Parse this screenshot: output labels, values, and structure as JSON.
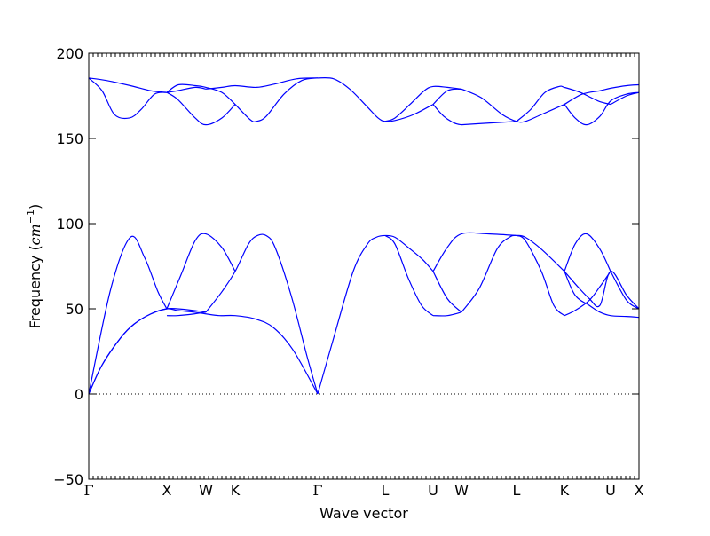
{
  "chart_data": {
    "type": "line",
    "xlabel": "Wave vector",
    "ylabel_prefix": "Frequency (",
    "ylabel_unit_base": "cm",
    "ylabel_unit_exp": "−1",
    "ylabel_suffix": ")",
    "ylim": [
      -50,
      200
    ],
    "yticks": [
      -50,
      0,
      50,
      100,
      150,
      200
    ],
    "ytick_labels": [
      "−50",
      "0",
      "50",
      "100",
      "150",
      "200"
    ],
    "x_range": [
      0,
      1
    ],
    "grid": false,
    "line_color": "#0000ff",
    "zero_line": {
      "y": 0,
      "style": "dotted",
      "color": "#000000"
    },
    "high_symmetry_points": [
      {
        "label": "Γ",
        "x": 0.0
      },
      {
        "label": "X",
        "x": 0.1419
      },
      {
        "label": "W",
        "x": 0.2129
      },
      {
        "label": "K",
        "x": 0.2661
      },
      {
        "label": "Γ",
        "x": 0.4161
      },
      {
        "label": "L",
        "x": 0.5387
      },
      {
        "label": "U",
        "x": 0.6258
      },
      {
        "label": "W",
        "x": 0.6774
      },
      {
        "label": "L",
        "x": 0.7774
      },
      {
        "label": "K",
        "x": 0.8645
      },
      {
        "label": "U",
        "x": 0.9484
      },
      {
        "label": "X",
        "x": 1.0
      }
    ],
    "series": [
      {
        "x": [
          0,
          0.0242,
          0.0581,
          0.0823,
          0.1129,
          0.1419,
          0.1613,
          0.1919,
          0.2129,
          0.2371,
          0.2661,
          0.3032,
          0.3355,
          0.371,
          0.4161
        ],
        "values": [
          0,
          17,
          33,
          41,
          47,
          50,
          49,
          48,
          47,
          46,
          46,
          44,
          39,
          26,
          0
        ]
      },
      {
        "x": [
          0,
          0.0242,
          0.0581,
          0.0823,
          0.1129,
          0.1419,
          0.1613,
          0.1919,
          0.2129
        ],
        "values": [
          0,
          17,
          33,
          41,
          47,
          50,
          50,
          49,
          48
        ]
      },
      {
        "x": [
          0.1419,
          0.1613,
          0.1919,
          0.2129
        ],
        "values": [
          46,
          46,
          47,
          48
        ]
      },
      {
        "x": [
          0,
          0.0403,
          0.0758,
          0.1016,
          0.1258,
          0.1419
        ],
        "values": [
          0,
          62,
          92,
          80,
          60,
          50
        ]
      },
      {
        "x": [
          0.1419,
          0.1677,
          0.1935,
          0.2129,
          0.2419,
          0.2661
        ],
        "values": [
          50,
          70,
          90,
          94,
          86,
          72
        ]
      },
      {
        "x": [
          0.2129,
          0.2419,
          0.2661,
          0.2903,
          0.3065,
          0.3226,
          0.3387,
          0.3677,
          0.3968,
          0.4161
        ],
        "values": [
          48,
          60,
          72,
          88,
          93,
          93,
          86,
          58,
          22,
          0
        ]
      },
      {
        "x": [
          0.4161,
          0.4452,
          0.4806,
          0.5065,
          0.5226,
          0.5387,
          0.5565,
          0.5806,
          0.6065,
          0.6258
        ],
        "values": [
          0,
          33,
          72,
          88,
          92,
          93,
          92,
          86,
          79,
          72
        ]
      },
      {
        "x": [
          0.5387,
          0.5565,
          0.5806,
          0.6048,
          0.6258
        ],
        "values": [
          93,
          88,
          68,
          52,
          46
        ]
      },
      {
        "x": [
          0.6258,
          0.6516,
          0.6774
        ],
        "values": [
          46,
          46,
          48
        ]
      },
      {
        "x": [
          0.6258,
          0.6516,
          0.6774
        ],
        "values": [
          72,
          56,
          48
        ]
      },
      {
        "x": [
          0.6258,
          0.6516,
          0.6774,
          0.7258,
          0.7774
        ],
        "values": [
          72,
          86,
          94,
          94,
          93
        ]
      },
      {
        "x": [
          0.6774,
          0.7097,
          0.7419,
          0.7645,
          0.7774,
          0.7935,
          0.8226,
          0.8645
        ],
        "values": [
          48,
          62,
          85,
          92,
          93,
          92,
          85,
          72
        ]
      },
      {
        "x": [
          0.7774,
          0.7935,
          0.8226,
          0.8452,
          0.8645
        ],
        "values": [
          93,
          90,
          72,
          52,
          46
        ]
      },
      {
        "x": [
          0.8645,
          0.8839,
          0.9097,
          0.929,
          0.9484
        ],
        "values": [
          46,
          49,
          55,
          63,
          72
        ]
      },
      {
        "x": [
          0.8645,
          0.8839,
          0.9097,
          0.929,
          0.9484,
          0.9774,
          1.0
        ],
        "values": [
          72,
          58,
          52,
          48,
          46,
          45.5,
          45
        ]
      },
      {
        "x": [
          0.8645,
          0.8839,
          0.9048,
          0.929,
          0.9484
        ],
        "values": [
          72,
          88,
          94,
          85,
          72
        ]
      },
      {
        "x": [
          0.8645,
          0.8887,
          0.9097,
          0.929,
          0.9484,
          0.9774,
          1.0
        ],
        "values": [
          72,
          63,
          56,
          52,
          72,
          58,
          50
        ]
      },
      {
        "x": [
          0.9484,
          0.9774,
          1.0
        ],
        "values": [
          72,
          55,
          50
        ]
      },
      {
        "x": [
          0,
          0.0323,
          0.0758,
          0.1129,
          0.1419
        ],
        "values": [
          185.5,
          184,
          181,
          178,
          177
        ]
      },
      {
        "x": [
          0,
          0.0242,
          0.0468,
          0.0742,
          0.0952,
          0.1194,
          0.1419
        ],
        "values": [
          185.5,
          178,
          164,
          162,
          167,
          176,
          177
        ]
      },
      {
        "x": [
          0.1419,
          0.1613,
          0.1935,
          0.2129
        ],
        "values": [
          177,
          178,
          180,
          179
        ]
      },
      {
        "x": [
          0.1419,
          0.1613,
          0.1935,
          0.2129,
          0.2419,
          0.2661
        ],
        "values": [
          177,
          173,
          162,
          158,
          162,
          170
        ]
      },
      {
        "x": [
          0.1419,
          0.1629,
          0.1935,
          0.2129,
          0.2419,
          0.2661
        ],
        "values": [
          177,
          181.5,
          181,
          180,
          177,
          170
        ]
      },
      {
        "x": [
          0.2129,
          0.2419,
          0.2661,
          0.3048,
          0.3387,
          0.3774,
          0.4161
        ],
        "values": [
          179,
          180,
          181,
          180,
          182,
          185,
          185.5
        ]
      },
      {
        "x": [
          0.2661,
          0.2935,
          0.3048,
          0.3226,
          0.3548,
          0.3871,
          0.4161
        ],
        "values": [
          170,
          161,
          160,
          163,
          176,
          184,
          185.5
        ]
      },
      {
        "x": [
          0.4161,
          0.4452,
          0.4742,
          0.5048,
          0.5258,
          0.5387,
          0.5565,
          0.5903,
          0.6258
        ],
        "values": [
          185.5,
          185,
          179,
          169,
          162,
          160,
          160.5,
          164,
          170
        ]
      },
      {
        "x": [
          0.5387,
          0.5565,
          0.5839,
          0.6097,
          0.6258,
          0.6516,
          0.6774
        ],
        "values": [
          160,
          162,
          170,
          178,
          180.5,
          180,
          179
        ]
      },
      {
        "x": [
          0.6258,
          0.6516,
          0.6774
        ],
        "values": [
          170,
          178,
          179
        ]
      },
      {
        "x": [
          0.6258,
          0.6452,
          0.6645,
          0.6774
        ],
        "values": [
          170,
          163,
          159,
          158
        ]
      },
      {
        "x": [
          0.6774,
          0.7258,
          0.7774
        ],
        "values": [
          158,
          159,
          160
        ]
      },
      {
        "x": [
          0.6774,
          0.7129,
          0.7516,
          0.7774,
          0.7935,
          0.8226,
          0.8645
        ],
        "values": [
          179,
          174,
          164,
          160,
          160,
          164,
          170
        ]
      },
      {
        "x": [
          0.7774,
          0.8032,
          0.829,
          0.8548,
          0.8645,
          0.8935,
          0.9258,
          0.9484
        ],
        "values": [
          160,
          167,
          177,
          180.5,
          180,
          177,
          172,
          170
        ]
      },
      {
        "x": [
          0.8645,
          0.8839,
          0.9048,
          0.929,
          0.9484,
          0.9774,
          1.0
        ],
        "values": [
          170,
          162,
          158,
          163,
          172,
          176,
          177
        ]
      },
      {
        "x": [
          0.8645,
          0.8968,
          0.929,
          0.9484,
          0.9774,
          1.0
        ],
        "values": [
          170,
          176,
          178,
          179.5,
          181,
          181.5
        ]
      },
      {
        "x": [
          0.9484,
          0.9774,
          1.0
        ],
        "values": [
          170,
          175,
          177
        ]
      }
    ]
  }
}
